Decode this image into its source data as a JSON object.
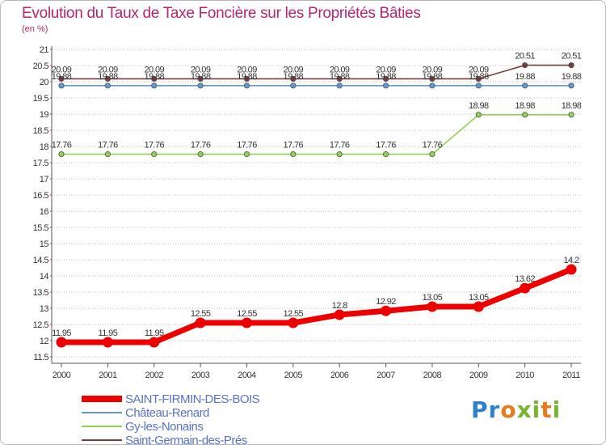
{
  "header": {
    "title": "Evolution du Taux de Taxe Foncière sur les Propriétés Bâties",
    "subtitle": "(en %)"
  },
  "brand": {
    "logo": "Proxiti"
  },
  "colors": {
    "title": "#b5266e",
    "grid": "#b8b8b8",
    "legend_text": "#5a72c8"
  },
  "chart_data": {
    "type": "line",
    "title": "Evolution du Taux de Taxe Foncière sur les Propriétés Bâties",
    "ylabel": "(en %)",
    "xlabel": "",
    "x": [
      "2000",
      "2001",
      "2002",
      "2003",
      "2004",
      "2005",
      "2006",
      "2007",
      "2008",
      "2009",
      "2010",
      "2011"
    ],
    "ylim": [
      11.5,
      21
    ],
    "yticks": [
      "11.5",
      "12",
      "12.5",
      "13",
      "13.5",
      "14",
      "14.5",
      "15",
      "15.5",
      "16",
      "16.5",
      "17",
      "17.5",
      "18",
      "18.5",
      "19",
      "19.5",
      "20",
      "20.5",
      "21"
    ],
    "grid": "horizontal dotted",
    "legend_position": "bottom-left",
    "series": [
      {
        "name": "SAINT-FIRMIN-DES-BOIS",
        "color": "#ee0000",
        "values": [
          11.95,
          11.95,
          11.95,
          12.55,
          12.55,
          12.55,
          12.8,
          12.92,
          13.05,
          13.05,
          13.62,
          14.2
        ],
        "labels": [
          "11.95",
          "11.95",
          "11.95",
          "12.55",
          "12.55",
          "12.55",
          "12.8",
          "12.92",
          "13.05",
          "13.05",
          "13.62",
          "14.2"
        ]
      },
      {
        "name": "Château-Renard",
        "color": "#5b9bd5",
        "values": [
          19.88,
          19.88,
          19.88,
          19.88,
          19.88,
          19.88,
          19.88,
          19.88,
          19.88,
          19.88,
          19.88,
          19.88
        ],
        "labels": [
          "19.88",
          "19.88",
          "19.88",
          "19.88",
          "19.88",
          "19.88",
          "19.88",
          "19.88",
          "19.88",
          "19.88",
          "19.88",
          "19.88"
        ]
      },
      {
        "name": "Gy-les-Nonains",
        "color": "#8fd14f",
        "values": [
          17.76,
          17.76,
          17.76,
          17.76,
          17.76,
          17.76,
          17.76,
          17.76,
          17.76,
          18.98,
          18.98,
          18.98
        ],
        "labels": [
          "17.76",
          "17.76",
          "17.76",
          "17.76",
          "17.76",
          "17.76",
          "17.76",
          "17.76",
          "17.76",
          "18.98",
          "18.98",
          "18.98"
        ]
      },
      {
        "name": "Saint-Germain-des-Prés",
        "color": "#7b3b3b",
        "values": [
          20.09,
          20.09,
          20.09,
          20.09,
          20.09,
          20.09,
          20.09,
          20.09,
          20.09,
          20.09,
          20.51,
          20.51
        ],
        "labels": [
          "20.09",
          "20.09",
          "20.09",
          "20.09",
          "20.09",
          "20.09",
          "20.09",
          "20.09",
          "20.09",
          "20.09",
          "20.51",
          "20.51"
        ]
      }
    ]
  }
}
